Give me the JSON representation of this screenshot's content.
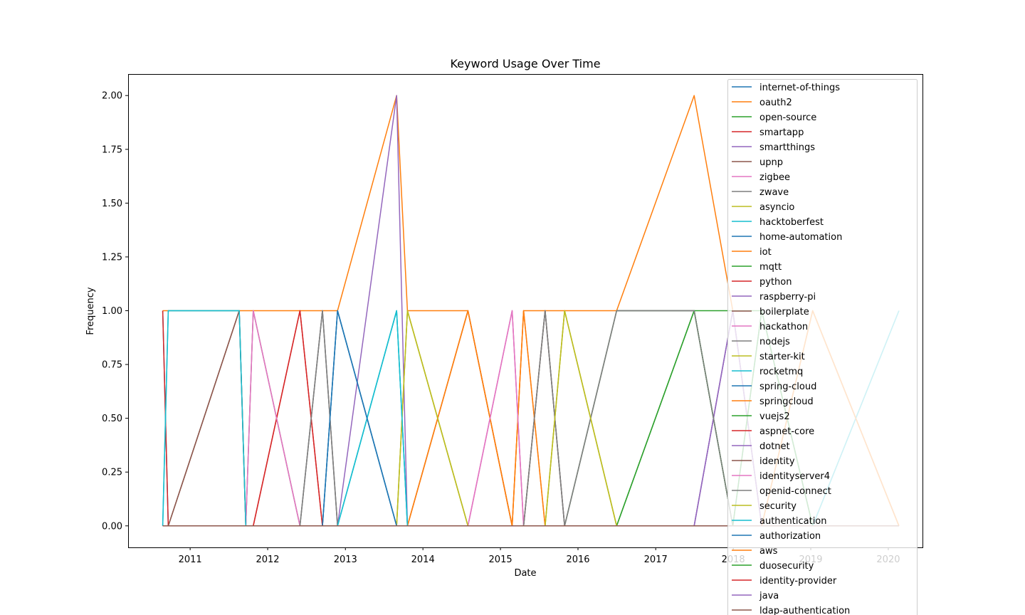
{
  "chart_data": {
    "type": "line",
    "title": "Keyword Usage Over Time",
    "xlabel": "Date",
    "ylabel": "Frequency",
    "xlim": [
      "2010-03-15",
      "2020-06-10"
    ],
    "ylim": [
      -0.1,
      2.1
    ],
    "grid": false,
    "legend_position": "upper right",
    "x_ticks": [
      "2011",
      "2012",
      "2013",
      "2014",
      "2015",
      "2016",
      "2017",
      "2018",
      "2019",
      "2020"
    ],
    "y_ticks": [
      "0.00",
      "0.25",
      "0.50",
      "0.75",
      "1.00",
      "1.25",
      "1.50",
      "1.75",
      "2.00"
    ],
    "dates": [
      "2010-08-25",
      "2010-09-20",
      "2011-08-20",
      "2011-09-20",
      "2011-10-25",
      "2012-06-01",
      "2012-09-15",
      "2012-11-25",
      "2013-08-30",
      "2013-10-20",
      "2014-08-01",
      "2015-02-25",
      "2015-04-20",
      "2015-07-30",
      "2015-10-30",
      "2016-07-01",
      "2017-07-01",
      "2017-12-30",
      "2018-05-15",
      "2019-01-10",
      "2020-02-20"
    ],
    "series": [
      {
        "name": "internet-of-things",
        "color": "#1f77b4",
        "values": [
          1,
          0,
          0,
          0,
          0,
          0,
          0,
          0,
          0,
          0,
          0,
          0,
          0,
          0,
          0,
          0,
          0,
          0,
          0,
          0,
          0
        ]
      },
      {
        "name": "oauth2",
        "color": "#ff7f0e",
        "values": [
          1,
          1,
          1,
          1,
          1,
          1,
          1,
          1,
          2,
          1,
          1,
          0,
          1,
          1,
          1,
          1,
          2,
          1,
          0,
          1,
          0
        ]
      },
      {
        "name": "open-source",
        "color": "#2ca02c",
        "values": [
          0,
          0,
          0,
          0,
          1,
          0,
          0,
          0,
          0,
          0,
          0,
          0,
          0,
          0,
          0,
          1,
          1,
          1,
          1,
          0,
          0
        ]
      },
      {
        "name": "smartapp",
        "color": "#d62728",
        "values": [
          1,
          0,
          0,
          0,
          0,
          1,
          0,
          0,
          0,
          0,
          0,
          0,
          0,
          0,
          0,
          0,
          0,
          0,
          0,
          0,
          0
        ]
      },
      {
        "name": "smartthings",
        "color": "#9467bd",
        "values": [
          0,
          0,
          0,
          0,
          0,
          0,
          0,
          0,
          2,
          0,
          0,
          0,
          0,
          0,
          0,
          0,
          0,
          1,
          0,
          0,
          0
        ]
      },
      {
        "name": "upnp",
        "color": "#8c564b",
        "values": [
          0,
          0,
          1,
          0,
          0,
          0,
          0,
          0,
          0,
          0,
          1,
          0,
          0,
          0,
          0,
          0,
          0,
          0,
          0,
          0,
          0
        ]
      },
      {
        "name": "zigbee",
        "color": "#e377c2",
        "values": [
          0,
          0,
          0,
          0,
          1,
          0,
          0,
          0,
          0,
          0,
          0,
          1,
          0,
          0,
          0,
          0,
          0,
          0,
          0,
          0,
          0
        ]
      },
      {
        "name": "zwave",
        "color": "#7f7f7f",
        "values": [
          0,
          0,
          0,
          0,
          0,
          0,
          1,
          0,
          0,
          0,
          0,
          0,
          0,
          1,
          0,
          1,
          1,
          0,
          0,
          0,
          0
        ]
      },
      {
        "name": "asyncio",
        "color": "#bcbd22",
        "values": [
          0,
          0,
          0,
          0,
          0,
          0,
          0,
          0,
          0,
          1,
          0,
          0,
          0,
          0,
          1,
          0,
          0,
          0,
          0,
          0,
          0
        ]
      },
      {
        "name": "hacktoberfest",
        "color": "#17becf",
        "values": [
          0,
          1,
          1,
          0,
          0,
          0,
          0,
          0,
          1,
          0,
          0,
          0,
          0,
          0,
          0,
          0,
          0,
          0,
          0,
          0,
          1
        ]
      },
      {
        "name": "home-automation",
        "color": "#1f77b4",
        "values": [
          0,
          0,
          0,
          0,
          0,
          0,
          0,
          1,
          0,
          0,
          0,
          0,
          0,
          0,
          0,
          0,
          0,
          0,
          0,
          0,
          0
        ]
      },
      {
        "name": "iot",
        "color": "#ff7f0e",
        "values": [
          0,
          0,
          0,
          0,
          0,
          0,
          0,
          0,
          0,
          0,
          1,
          0,
          1,
          0,
          0,
          0,
          0,
          0,
          0,
          1,
          0
        ]
      },
      {
        "name": "mqtt",
        "color": "#2ca02c",
        "values": [
          0,
          0,
          0,
          0,
          0,
          0,
          0,
          0,
          0,
          0,
          0,
          0,
          0,
          0,
          0,
          0,
          1,
          0,
          0,
          0,
          0
        ]
      },
      {
        "name": "python",
        "color": "#d62728",
        "values": [
          0,
          0,
          0,
          0,
          0,
          0,
          0,
          0,
          0,
          0,
          0,
          0,
          0,
          0,
          0,
          0,
          0,
          0,
          0,
          0,
          0
        ]
      },
      {
        "name": "raspberry-pi",
        "color": "#9467bd",
        "values": [
          0,
          0,
          0,
          0,
          0,
          0,
          0,
          0,
          0,
          0,
          0,
          0,
          0,
          0,
          0,
          0,
          0,
          1,
          0,
          0,
          0
        ]
      },
      {
        "name": "boilerplate",
        "color": "#8c564b",
        "values": [
          0,
          0,
          0,
          0,
          0,
          0,
          0,
          0,
          0,
          0,
          0,
          0,
          0,
          1,
          0,
          0,
          0,
          0,
          0,
          0,
          0
        ]
      },
      {
        "name": "hackathon",
        "color": "#e377c2",
        "values": [
          0,
          0,
          0,
          0,
          0,
          0,
          0,
          0,
          0,
          0,
          0,
          1,
          0,
          0,
          0,
          0,
          0,
          0,
          0,
          0,
          0
        ]
      },
      {
        "name": "nodejs",
        "color": "#7f7f7f",
        "values": [
          0,
          0,
          0,
          0,
          0,
          0,
          1,
          0,
          0,
          0,
          0,
          0,
          0,
          1,
          0,
          0,
          0,
          0,
          0,
          0,
          0
        ]
      },
      {
        "name": "starter-kit",
        "color": "#bcbd22",
        "values": [
          0,
          0,
          0,
          0,
          0,
          0,
          0,
          0,
          0,
          1,
          0,
          0,
          0,
          0,
          1,
          0,
          0,
          0,
          0,
          0,
          0
        ]
      },
      {
        "name": "rocketmq",
        "color": "#17becf",
        "values": [
          0,
          0,
          0,
          0,
          0,
          0,
          0,
          0,
          1,
          0,
          0,
          0,
          0,
          0,
          0,
          0,
          0,
          0,
          0,
          0,
          0
        ]
      },
      {
        "name": "spring-cloud",
        "color": "#1f77b4",
        "values": [
          0,
          0,
          0,
          0,
          0,
          0,
          0,
          1,
          0,
          0,
          0,
          0,
          0,
          0,
          0,
          0,
          0,
          0,
          1,
          0,
          0
        ]
      },
      {
        "name": "springcloud",
        "color": "#ff7f0e",
        "values": [
          0,
          0,
          0,
          0,
          0,
          0,
          0,
          0,
          0,
          0,
          1,
          0,
          1,
          0,
          0,
          0,
          0,
          0,
          0,
          0,
          0
        ]
      },
      {
        "name": "vuejs2",
        "color": "#2ca02c",
        "values": [
          0,
          0,
          0,
          0,
          0,
          0,
          0,
          0,
          0,
          0,
          0,
          0,
          0,
          0,
          0,
          0,
          1,
          0,
          0,
          0,
          0
        ]
      },
      {
        "name": "aspnet-core",
        "color": "#d62728",
        "values": [
          0,
          0,
          0,
          0,
          0,
          1,
          0,
          0,
          0,
          0,
          0,
          0,
          0,
          0,
          0,
          0,
          0,
          0,
          0,
          0,
          0
        ]
      },
      {
        "name": "dotnet",
        "color": "#9467bd",
        "values": [
          0,
          0,
          0,
          0,
          0,
          0,
          0,
          0,
          0,
          0,
          0,
          0,
          0,
          0,
          0,
          0,
          0,
          1,
          0,
          0,
          0
        ]
      },
      {
        "name": "identity",
        "color": "#8c564b",
        "values": [
          0,
          0,
          1,
          0,
          0,
          0,
          0,
          0,
          0,
          0,
          0,
          0,
          0,
          0,
          0,
          0,
          0,
          0,
          0,
          0,
          0
        ]
      },
      {
        "name": "identityserver4",
        "color": "#e377c2",
        "values": [
          0,
          0,
          0,
          0,
          1,
          0,
          0,
          0,
          0,
          0,
          0,
          1,
          0,
          0,
          0,
          0,
          0,
          0,
          0,
          0,
          0
        ]
      },
      {
        "name": "openid-connect",
        "color": "#7f7f7f",
        "values": [
          0,
          0,
          0,
          0,
          0,
          0,
          1,
          0,
          0,
          0,
          0,
          0,
          0,
          1,
          0,
          1,
          1,
          0,
          0,
          0,
          0
        ]
      },
      {
        "name": "security",
        "color": "#bcbd22",
        "values": [
          0,
          0,
          0,
          0,
          0,
          0,
          0,
          0,
          0,
          1,
          0,
          0,
          0,
          0,
          1,
          0,
          0,
          0,
          0,
          0,
          0
        ]
      },
      {
        "name": "authentication",
        "color": "#17becf",
        "values": [
          0,
          1,
          1,
          0,
          0,
          0,
          0,
          0,
          1,
          0,
          0,
          0,
          0,
          0,
          0,
          0,
          0,
          0,
          0,
          0,
          1
        ]
      },
      {
        "name": "authorization",
        "color": "#1f77b4",
        "values": [
          0,
          0,
          0,
          0,
          0,
          0,
          0,
          1,
          0,
          0,
          0,
          0,
          0,
          0,
          0,
          0,
          0,
          0,
          0,
          0,
          0
        ]
      },
      {
        "name": "aws",
        "color": "#ff7f0e",
        "values": [
          0,
          0,
          0,
          0,
          0,
          0,
          0,
          0,
          0,
          0,
          0,
          0,
          0,
          0,
          0,
          0,
          0,
          0,
          0,
          1,
          0
        ]
      },
      {
        "name": "duosecurity",
        "color": "#2ca02c",
        "values": [
          0,
          0,
          0,
          0,
          0,
          0,
          0,
          0,
          0,
          0,
          0,
          0,
          0,
          0,
          0,
          0,
          0,
          0,
          1,
          0,
          0
        ]
      },
      {
        "name": "identity-provider",
        "color": "#d62728",
        "values": [
          0,
          0,
          0,
          0,
          0,
          0,
          0,
          0,
          0,
          0,
          0,
          0,
          0,
          0,
          0,
          0,
          0,
          0,
          0,
          0,
          0
        ]
      },
      {
        "name": "java",
        "color": "#9467bd",
        "values": [
          0,
          0,
          0,
          0,
          0,
          0,
          0,
          0,
          0,
          0,
          0,
          0,
          0,
          0,
          0,
          0,
          0,
          0,
          0,
          0,
          0
        ]
      },
      {
        "name": "ldap-authentication",
        "color": "#8c564b",
        "values": [
          0,
          0,
          0,
          0,
          0,
          0,
          0,
          0,
          0,
          0,
          0,
          0,
          0,
          0,
          0,
          0,
          0,
          0,
          0,
          0,
          0
        ]
      }
    ]
  }
}
